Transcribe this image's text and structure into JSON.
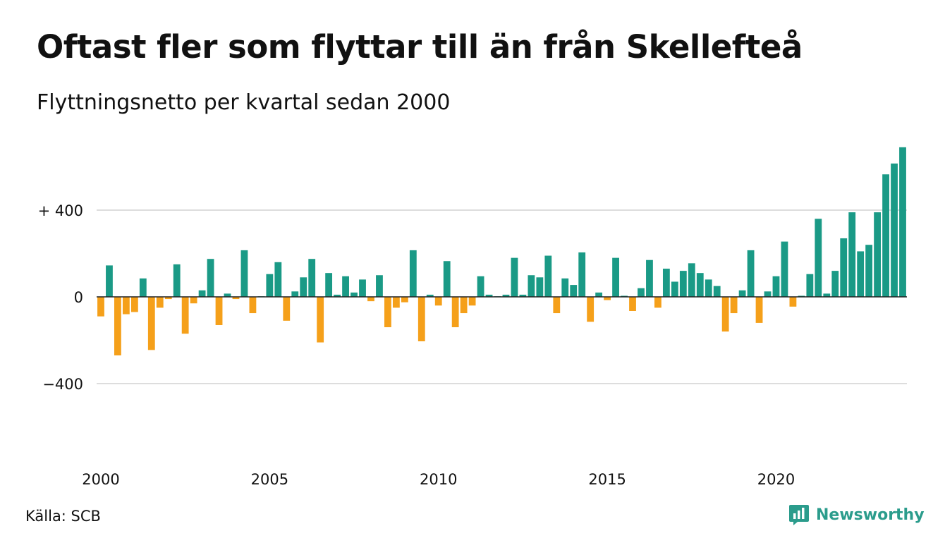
{
  "title": "Oftast fler som flyttar till än från Skellefteå",
  "subtitle": "Flyttningsnetto per kvartal sedan 2000",
  "source": "Källa: SCB",
  "brand": "Newsworthy",
  "colors": {
    "positive": "#1a9a86",
    "negative": "#f5a01a",
    "grid": "#dddddd",
    "brand": "#2b9c8c"
  },
  "icons": {
    "brand_logo": "bar-chart-speech-bubble-icon"
  },
  "chart_data": {
    "type": "bar",
    "title": "Oftast fler som flyttar till än från Skellefteå",
    "subtitle": "Flyttningsnetto per kvartal sedan 2000",
    "xlabel": "",
    "ylabel": "",
    "x_tick_labels": [
      "2000",
      "2005",
      "2010",
      "2015",
      "2020"
    ],
    "y_ticks": [
      {
        "value": 400,
        "label": "+ 400"
      },
      {
        "value": 0,
        "label": "0"
      },
      {
        "value": -400,
        "label": "−400"
      }
    ],
    "ylim": [
      -700,
      700
    ],
    "grid": true,
    "series": [
      {
        "values": [
          -90,
          145,
          -270,
          -80,
          -70,
          85,
          -245,
          -50,
          -10,
          150,
          -170,
          -30,
          30,
          175,
          -130,
          15,
          -10,
          215,
          -75,
          0,
          105,
          160,
          -110,
          25,
          90,
          175,
          -210,
          110,
          10,
          95,
          20,
          80,
          -20,
          100,
          -140,
          -50,
          -25,
          215,
          -205,
          10,
          -40,
          165,
          -140,
          -75,
          -40,
          95,
          10,
          0,
          10,
          180,
          10,
          100,
          90,
          190,
          -75,
          85,
          55,
          205,
          -115,
          20,
          -15,
          180,
          5,
          -65,
          40,
          170,
          -50,
          130,
          70,
          120,
          155,
          110,
          80,
          50,
          -160,
          -75,
          30,
          215,
          -120,
          25,
          95,
          255,
          -45,
          5,
          105,
          360,
          15,
          120,
          270,
          390,
          210,
          240,
          390,
          565,
          615,
          690
        ]
      }
    ]
  }
}
